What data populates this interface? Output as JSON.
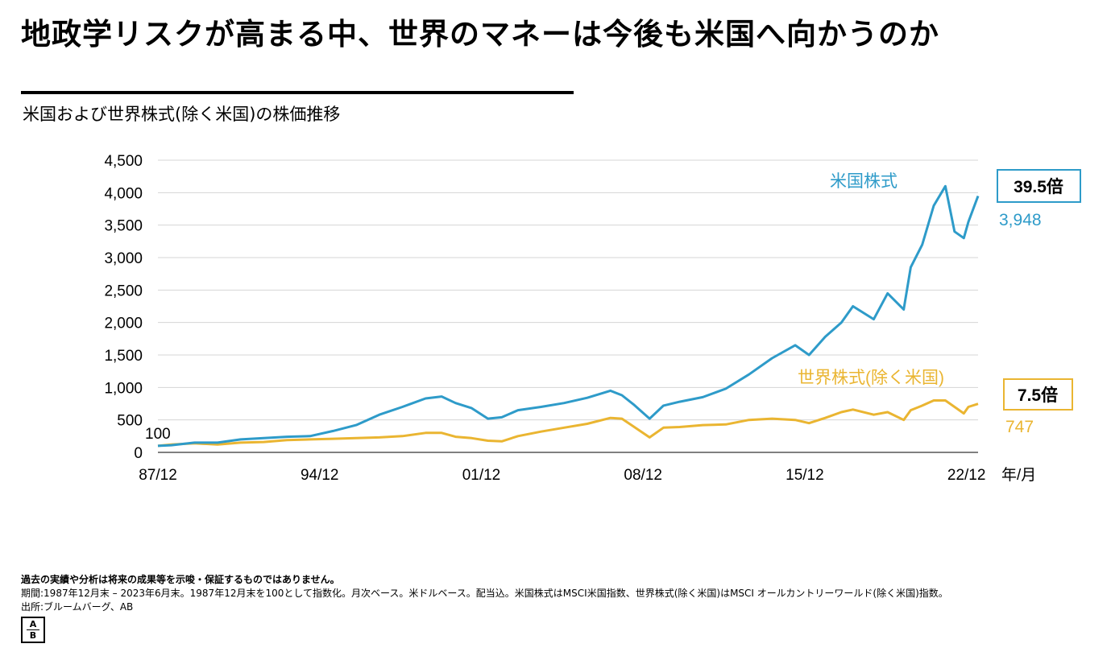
{
  "title": "地政学リスクが高まる中、世界のマネーは今後も米国へ向かうのか",
  "subtitle": "米国および世界株式(除く米国)の株価推移",
  "chart_data": {
    "type": "line",
    "ylim": [
      0,
      4500
    ],
    "yticks": [
      "0",
      "500",
      "1,000",
      "1,500",
      "2,000",
      "2,500",
      "3,000",
      "3,500",
      "4,000",
      "4,500"
    ],
    "ytick_values": [
      0,
      500,
      1000,
      1500,
      2000,
      2500,
      3000,
      3500,
      4000,
      4500
    ],
    "xlim": [
      1987.917,
      2023.417
    ],
    "xticks": [
      "87/12",
      "94/12",
      "01/12",
      "08/12",
      "15/12",
      "22/12"
    ],
    "xtick_values": [
      1987.917,
      1994.917,
      2001.917,
      2008.917,
      2015.917,
      2022.917
    ],
    "xunit": "年/月",
    "start_label": "100",
    "grid": true,
    "series": [
      {
        "name": "米国株式",
        "color": "#2e9bc9",
        "end_value": "3,948",
        "multiple": "39.5倍",
        "x": [
          1987.917,
          1988.5,
          1989.5,
          1990.5,
          1991.5,
          1992.5,
          1993.5,
          1994.5,
          1995.5,
          1996.5,
          1997.5,
          1998.5,
          1999.5,
          2000.2,
          2000.8,
          2001.5,
          2002.2,
          2002.8,
          2003.5,
          2004.5,
          2005.5,
          2006.5,
          2007.5,
          2008.0,
          2008.5,
          2009.2,
          2009.8,
          2010.5,
          2011.5,
          2012.5,
          2013.5,
          2014.5,
          2015.5,
          2016.1,
          2016.8,
          2017.5,
          2018.0,
          2018.9,
          2019.5,
          2020.2,
          2020.5,
          2021.0,
          2021.5,
          2022.0,
          2022.4,
          2022.8,
          2023.0,
          2023.417
        ],
        "y": [
          100,
          110,
          150,
          150,
          200,
          220,
          240,
          250,
          330,
          420,
          580,
          700,
          830,
          860,
          760,
          680,
          520,
          540,
          650,
          700,
          760,
          840,
          950,
          880,
          740,
          520,
          720,
          780,
          850,
          980,
          1200,
          1450,
          1650,
          1500,
          1780,
          2000,
          2250,
          2050,
          2450,
          2200,
          2850,
          3200,
          3800,
          4100,
          3400,
          3300,
          3550,
          3948
        ]
      },
      {
        "name": "世界株式(除く米国)",
        "color": "#eab531",
        "end_value": "747",
        "multiple": "7.5倍",
        "x": [
          1987.917,
          1988.5,
          1989.5,
          1990.5,
          1991.5,
          1992.5,
          1993.5,
          1994.5,
          1995.5,
          1996.5,
          1997.5,
          1998.5,
          1999.5,
          2000.2,
          2000.8,
          2001.5,
          2002.2,
          2002.8,
          2003.5,
          2004.5,
          2005.5,
          2006.5,
          2007.5,
          2008.0,
          2008.5,
          2009.2,
          2009.8,
          2010.5,
          2011.5,
          2012.5,
          2013.5,
          2014.5,
          2015.5,
          2016.1,
          2016.8,
          2017.5,
          2018.0,
          2018.9,
          2019.5,
          2020.2,
          2020.5,
          2021.0,
          2021.5,
          2022.0,
          2022.4,
          2022.8,
          2023.0,
          2023.417
        ],
        "y": [
          100,
          120,
          140,
          120,
          150,
          160,
          190,
          200,
          210,
          220,
          230,
          250,
          300,
          300,
          240,
          220,
          180,
          170,
          250,
          320,
          380,
          440,
          530,
          520,
          400,
          230,
          380,
          390,
          420,
          430,
          500,
          520,
          500,
          450,
          530,
          620,
          660,
          580,
          620,
          500,
          650,
          720,
          800,
          800,
          700,
          600,
          700,
          747
        ]
      }
    ]
  },
  "footer": {
    "disclaimer": "過去の実績や分析は将来の成果等を示唆・保証するものではありません。",
    "period": "期間:1987年12月末 – 2023年6月末。1987年12月末を100として指数化。月次ベース。米ドルベース。配当込。米国株式はMSCI米国指数、世界株式(除く米国)はMSCI オールカントリーワールド(除く米国)指数。",
    "source": "出所:ブルームバーグ、AB"
  },
  "logo": {
    "top": "A",
    "bottom": "B"
  }
}
